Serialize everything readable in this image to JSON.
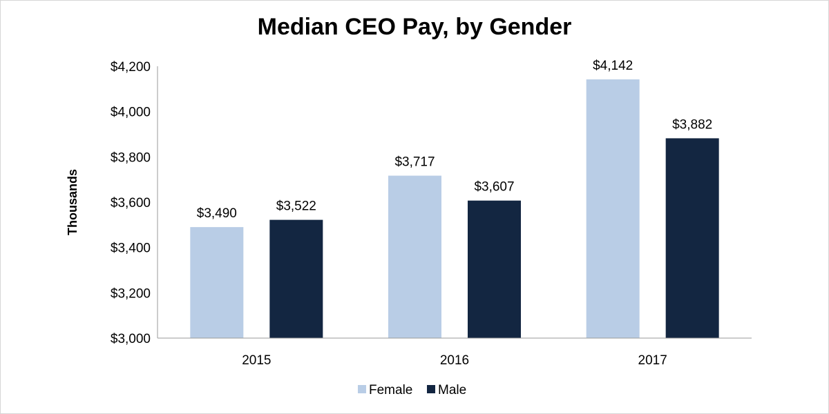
{
  "chart_data": {
    "type": "bar",
    "title": "Median CEO Pay, by Gender",
    "xlabel": "",
    "ylabel": "Thousands",
    "categories": [
      "2015",
      "2016",
      "2017"
    ],
    "series": [
      {
        "name": "Female",
        "values": [
          3490,
          3717,
          4142
        ],
        "labels": [
          "$3,490",
          "$3,717",
          "$4,142"
        ],
        "color": "#b9cde6"
      },
      {
        "name": "Male",
        "values": [
          3522,
          3607,
          3882
        ],
        "labels": [
          "$3,522",
          "$3,607",
          "$3,882"
        ],
        "color": "#132641"
      }
    ],
    "ylim": [
      3000,
      4200
    ],
    "yticks": [
      3000,
      3200,
      3400,
      3600,
      3800,
      4000,
      4200
    ],
    "ytick_labels": [
      "$3,000",
      "$3,200",
      "$3,400",
      "$3,600",
      "$3,800",
      "$4,000",
      "$4,200"
    ],
    "grid": false,
    "legend_position": "bottom"
  }
}
